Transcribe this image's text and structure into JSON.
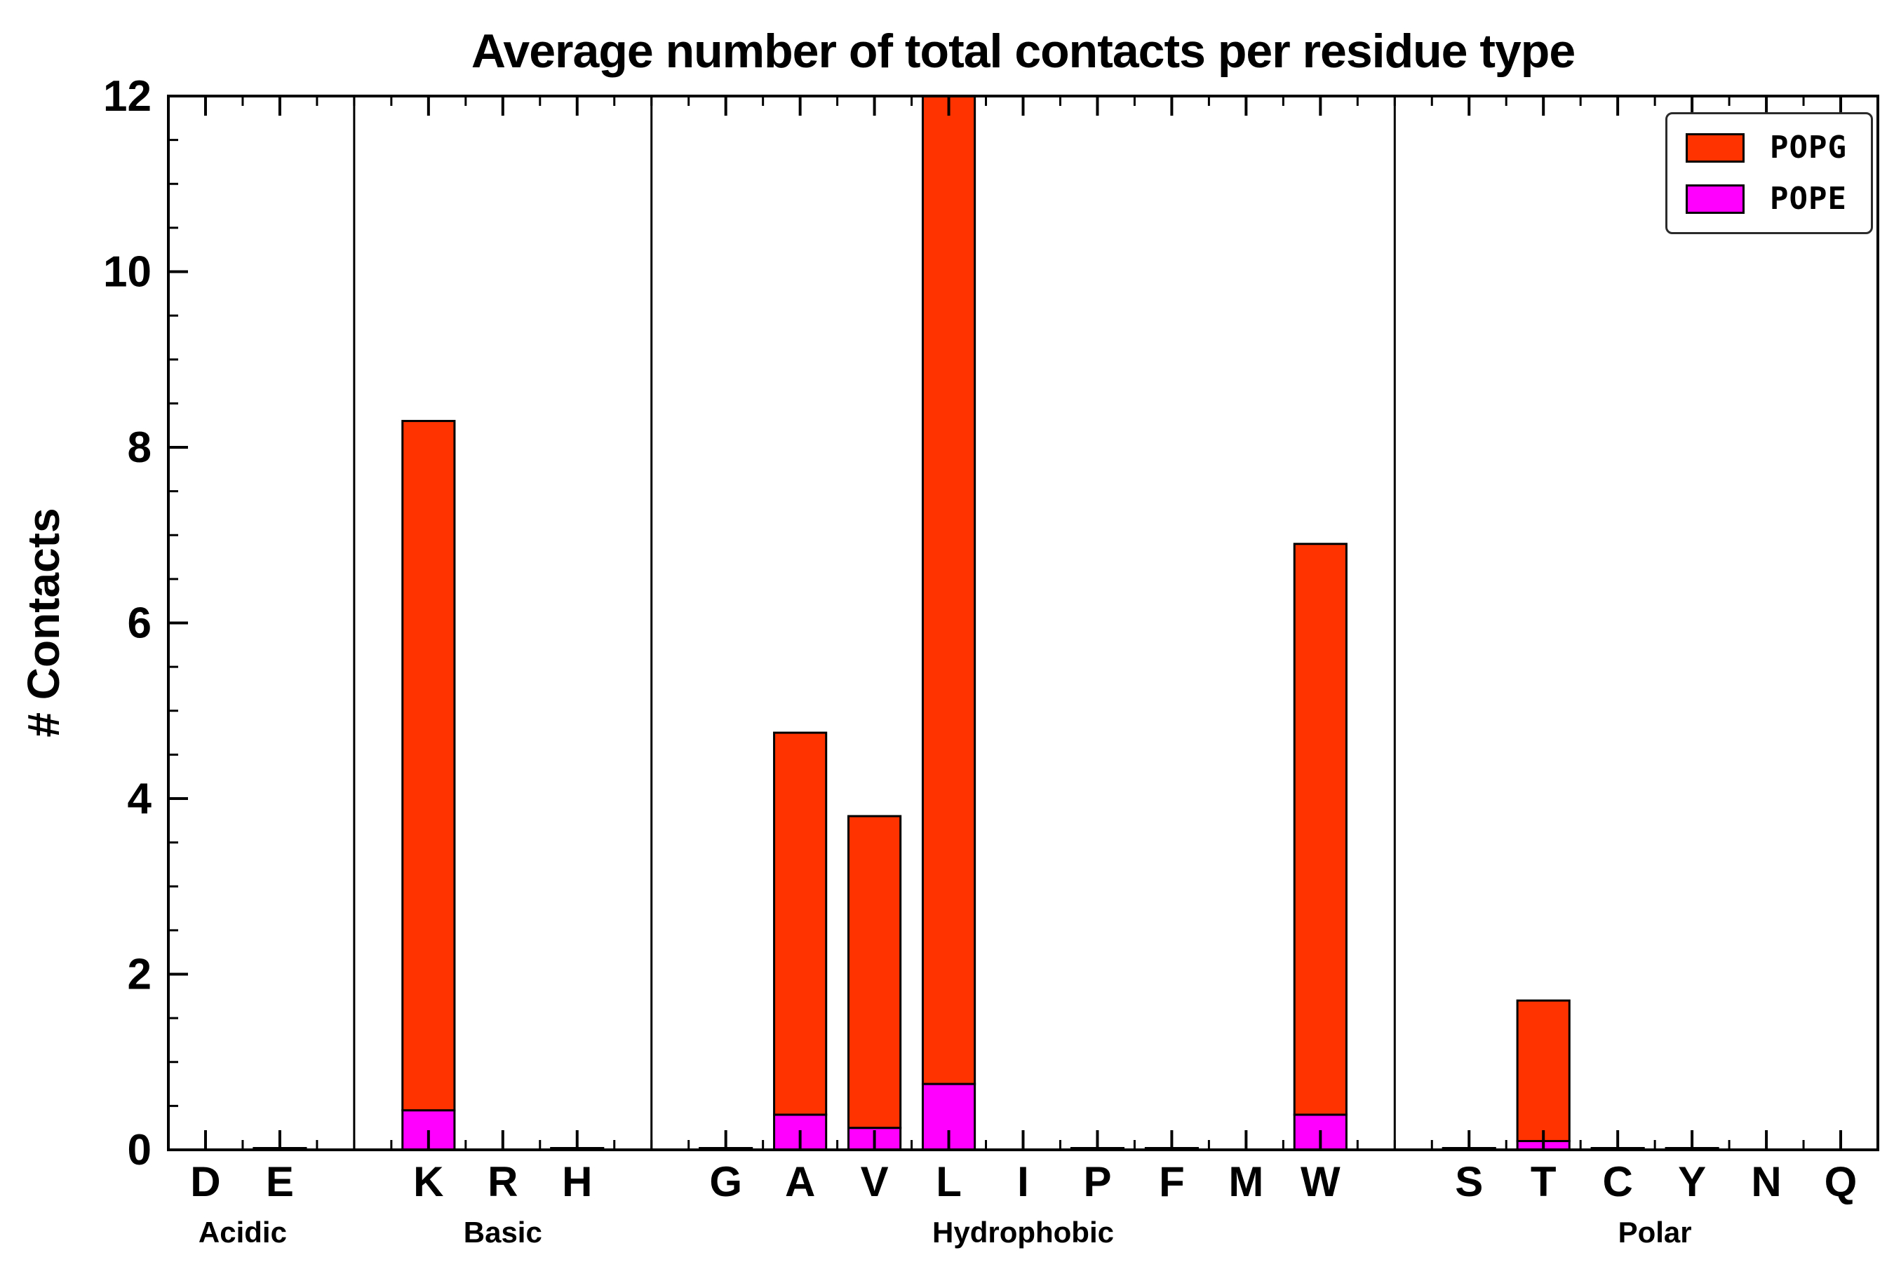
{
  "title": "Average number of total contacts per residue type",
  "ylabel": "# Contacts",
  "legend": [
    {
      "label": "POPG",
      "color": "#ff3300"
    },
    {
      "label": "POPE",
      "color": "#ff00ff"
    }
  ],
  "chart_data": {
    "type": "bar",
    "stacked": true,
    "title": "Average number of total contacts per residue type",
    "xlabel": "",
    "ylabel": "# Contacts",
    "ylim": [
      0,
      12
    ],
    "yticks": [
      0,
      2,
      4,
      6,
      8,
      10,
      12
    ],
    "grid": false,
    "legend_position": "upper right",
    "groups": [
      {
        "label": "Acidic",
        "residues": [
          "D",
          "E"
        ]
      },
      {
        "label": "Basic",
        "residues": [
          "K",
          "R",
          "H"
        ]
      },
      {
        "label": "Hydrophobic",
        "residues": [
          "G",
          "A",
          "V",
          "L",
          "I",
          "P",
          "F",
          "M",
          "W"
        ]
      },
      {
        "label": "Polar",
        "residues": [
          "S",
          "T",
          "C",
          "Y",
          "N",
          "Q"
        ]
      }
    ],
    "categories": [
      "D",
      "E",
      "K",
      "R",
      "H",
      "G",
      "A",
      "V",
      "L",
      "I",
      "P",
      "F",
      "M",
      "W",
      "S",
      "T",
      "C",
      "Y",
      "N",
      "Q"
    ],
    "series": [
      {
        "name": "POPE",
        "color": "#ff00ff",
        "values": [
          0,
          0,
          0.45,
          0,
          0,
          0,
          0.4,
          0.25,
          0.75,
          0,
          0,
          0,
          0,
          0.4,
          0,
          0.1,
          0,
          0,
          0,
          0
        ]
      },
      {
        "name": "POPG",
        "color": "#ff3300",
        "values": [
          0,
          0.02,
          7.85,
          0,
          0.02,
          0.02,
          4.35,
          3.55,
          11.25,
          0,
          0.02,
          0.02,
          0,
          6.5,
          0.02,
          1.6,
          0.02,
          0.02,
          0,
          0
        ]
      }
    ],
    "totals": [
      0,
      0.02,
      8.3,
      0,
      0.02,
      0.02,
      4.75,
      3.8,
      12.0,
      0,
      0.02,
      0.02,
      0,
      6.9,
      0.02,
      1.7,
      0.02,
      0.02,
      0,
      0
    ]
  }
}
